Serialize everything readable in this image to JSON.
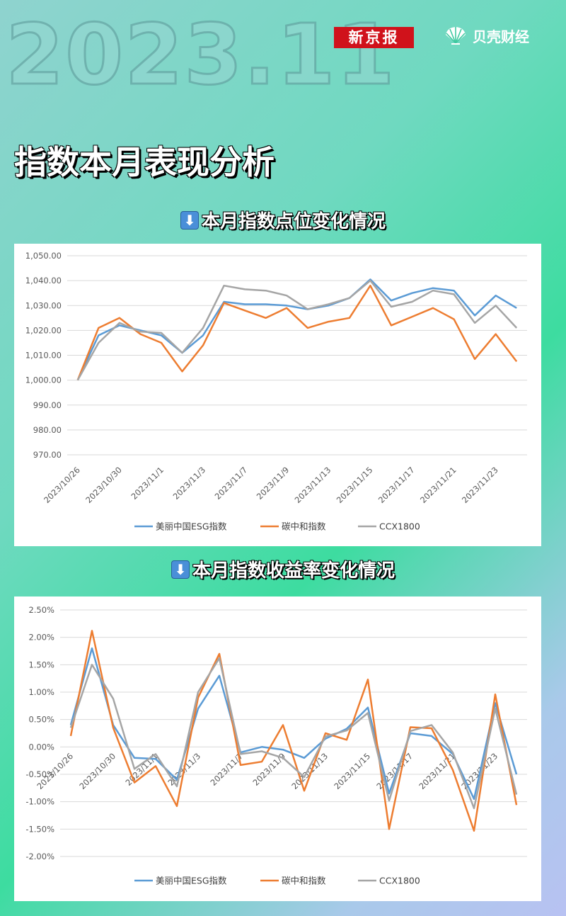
{
  "header": {
    "year": "2023.11",
    "logo_bjnews": "新京报",
    "logo_beike": "贝壳财经",
    "title": "指数本月表现分析"
  },
  "colors": {
    "esg": "#5b9bd5",
    "carbon": "#ed7d31",
    "ccx": "#a5a5a5",
    "accent_red": "#d0121b"
  },
  "sections": {
    "chart1_title": "本月指数点位变化情况",
    "chart2_title": "本月指数收益率变化情况"
  },
  "chart_data": [
    {
      "type": "line",
      "title": "本月指数点位变化情况",
      "x_tick_labels": [
        "2023/10/26",
        "2023/10/30",
        "2023/11/1",
        "2023/11/3",
        "2023/11/7",
        "2023/11/9",
        "2023/11/13",
        "2023/11/15",
        "2023/11/17",
        "2023/11/21",
        "2023/11/23"
      ],
      "y_tick_labels": [
        "970.00",
        "980.00",
        "990.00",
        "1,000.00",
        "1,010.00",
        "1,020.00",
        "1,030.00",
        "1,040.00",
        "1,050.00"
      ],
      "ylim": [
        970,
        1050
      ],
      "grid": true,
      "legend_position": "bottom",
      "series": [
        {
          "name": "美丽中国ESG指数",
          "values": [
            1000,
            1018,
            1022,
            1020,
            1018,
            1011,
            1018,
            1031.5,
            1030.5,
            1030.5,
            1030,
            1028.5,
            1030,
            1033,
            1040.5,
            1032,
            1035,
            1037,
            1036,
            1026,
            1034,
            1029
          ]
        },
        {
          "name": "碳中和指数",
          "values": [
            1000,
            1021,
            1025,
            1018.5,
            1015,
            1003.5,
            1014,
            1031,
            1028,
            1025,
            1029,
            1021,
            1023.5,
            1025,
            1038,
            1022,
            1025.5,
            1029,
            1024.5,
            1008.5,
            1018.5,
            1007.5
          ]
        },
        {
          "name": "CCX1800",
          "values": [
            1000,
            1015,
            1023,
            1019.5,
            1019,
            1011,
            1021,
            1038,
            1036.5,
            1036,
            1034,
            1028.5,
            1030.5,
            1033,
            1040,
            1029.5,
            1031.5,
            1036,
            1034.5,
            1023,
            1030,
            1021
          ]
        }
      ]
    },
    {
      "type": "line",
      "title": "本月指数收益率变化情况",
      "x_tick_labels": [
        "2023/10/26",
        "2023/10/30",
        "2023/11/1",
        "2023/11/3",
        "2023/11/7",
        "2023/11/9",
        "2023/11/13",
        "2023/11/15",
        "2023/11/17",
        "2023/11/21",
        "2023/11/23"
      ],
      "y_tick_labels": [
        "-2.00%",
        "-1.50%",
        "-1.00%",
        "-0.50%",
        "0.00%",
        "0.50%",
        "1.00%",
        "1.50%",
        "2.00%",
        "2.50%"
      ],
      "ylim": [
        -2.0,
        2.5
      ],
      "grid": true,
      "legend_position": "bottom",
      "series": [
        {
          "name": "美丽中国ESG指数",
          "values": [
            0.4,
            1.8,
            0.4,
            -0.2,
            -0.22,
            -0.6,
            0.7,
            1.3,
            -0.1,
            0.0,
            -0.05,
            -0.2,
            0.15,
            0.33,
            0.72,
            -0.85,
            0.25,
            0.2,
            -0.13,
            -0.95,
            0.8,
            -0.5
          ]
        },
        {
          "name": "碳中和指数",
          "values": [
            0.2,
            2.12,
            0.35,
            -0.65,
            -0.35,
            -1.08,
            0.9,
            1.7,
            -0.33,
            -0.27,
            0.4,
            -0.8,
            0.25,
            0.13,
            1.23,
            -1.5,
            0.36,
            0.34,
            -0.42,
            -1.53,
            0.96,
            -1.06
          ]
        },
        {
          "name": "CCX1800",
          "values": [
            0.35,
            1.5,
            0.88,
            -0.4,
            -0.13,
            -0.72,
            1.0,
            1.62,
            -0.13,
            -0.08,
            -0.2,
            -0.55,
            0.19,
            0.3,
            0.62,
            -0.98,
            0.29,
            0.4,
            -0.1,
            -1.12,
            0.7,
            -0.87
          ]
        }
      ]
    }
  ]
}
